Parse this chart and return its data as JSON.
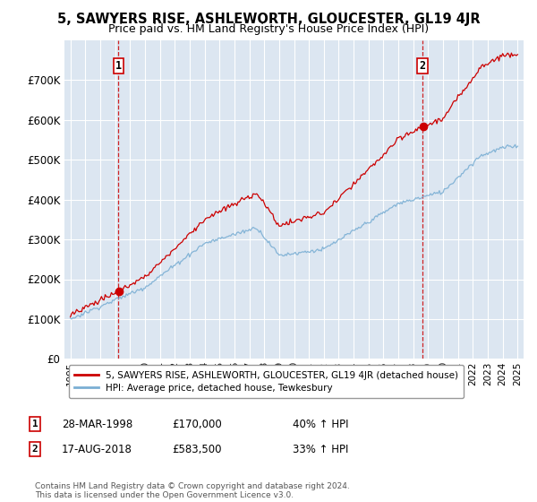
{
  "title": "5, SAWYERS RISE, ASHLEWORTH, GLOUCESTER, GL19 4JR",
  "subtitle": "Price paid vs. HM Land Registry's House Price Index (HPI)",
  "ylim": [
    0,
    800000
  ],
  "xlim": [
    1994.6,
    2025.4
  ],
  "yticks": [
    0,
    100000,
    200000,
    300000,
    400000,
    500000,
    600000,
    700000
  ],
  "ytick_labels": [
    "£0",
    "£100K",
    "£200K",
    "£300K",
    "£400K",
    "£500K",
    "£600K",
    "£700K"
  ],
  "xticks": [
    1995,
    1996,
    1997,
    1998,
    1999,
    2000,
    2001,
    2002,
    2003,
    2004,
    2005,
    2006,
    2007,
    2008,
    2009,
    2010,
    2011,
    2012,
    2013,
    2014,
    2015,
    2016,
    2017,
    2018,
    2019,
    2020,
    2021,
    2022,
    2023,
    2024,
    2025
  ],
  "background_color": "#ffffff",
  "plot_bg_color": "#dce6f1",
  "grid_color": "#ffffff",
  "sale1_x": 1998.23,
  "sale1_y": 170000,
  "sale2_x": 2018.63,
  "sale2_y": 583500,
  "line1_color": "#cc0000",
  "line2_color": "#7bafd4",
  "legend1": "5, SAWYERS RISE, ASHLEWORTH, GLOUCESTER, GL19 4JR (detached house)",
  "legend2": "HPI: Average price, detached house, Tewkesbury",
  "sale1_date": "28-MAR-1998",
  "sale1_price": "£170,000",
  "sale1_hpi": "40% ↑ HPI",
  "sale2_date": "17-AUG-2018",
  "sale2_price": "£583,500",
  "sale2_hpi": "33% ↑ HPI",
  "footnote": "Contains HM Land Registry data © Crown copyright and database right 2024.\nThis data is licensed under the Open Government Licence v3.0."
}
